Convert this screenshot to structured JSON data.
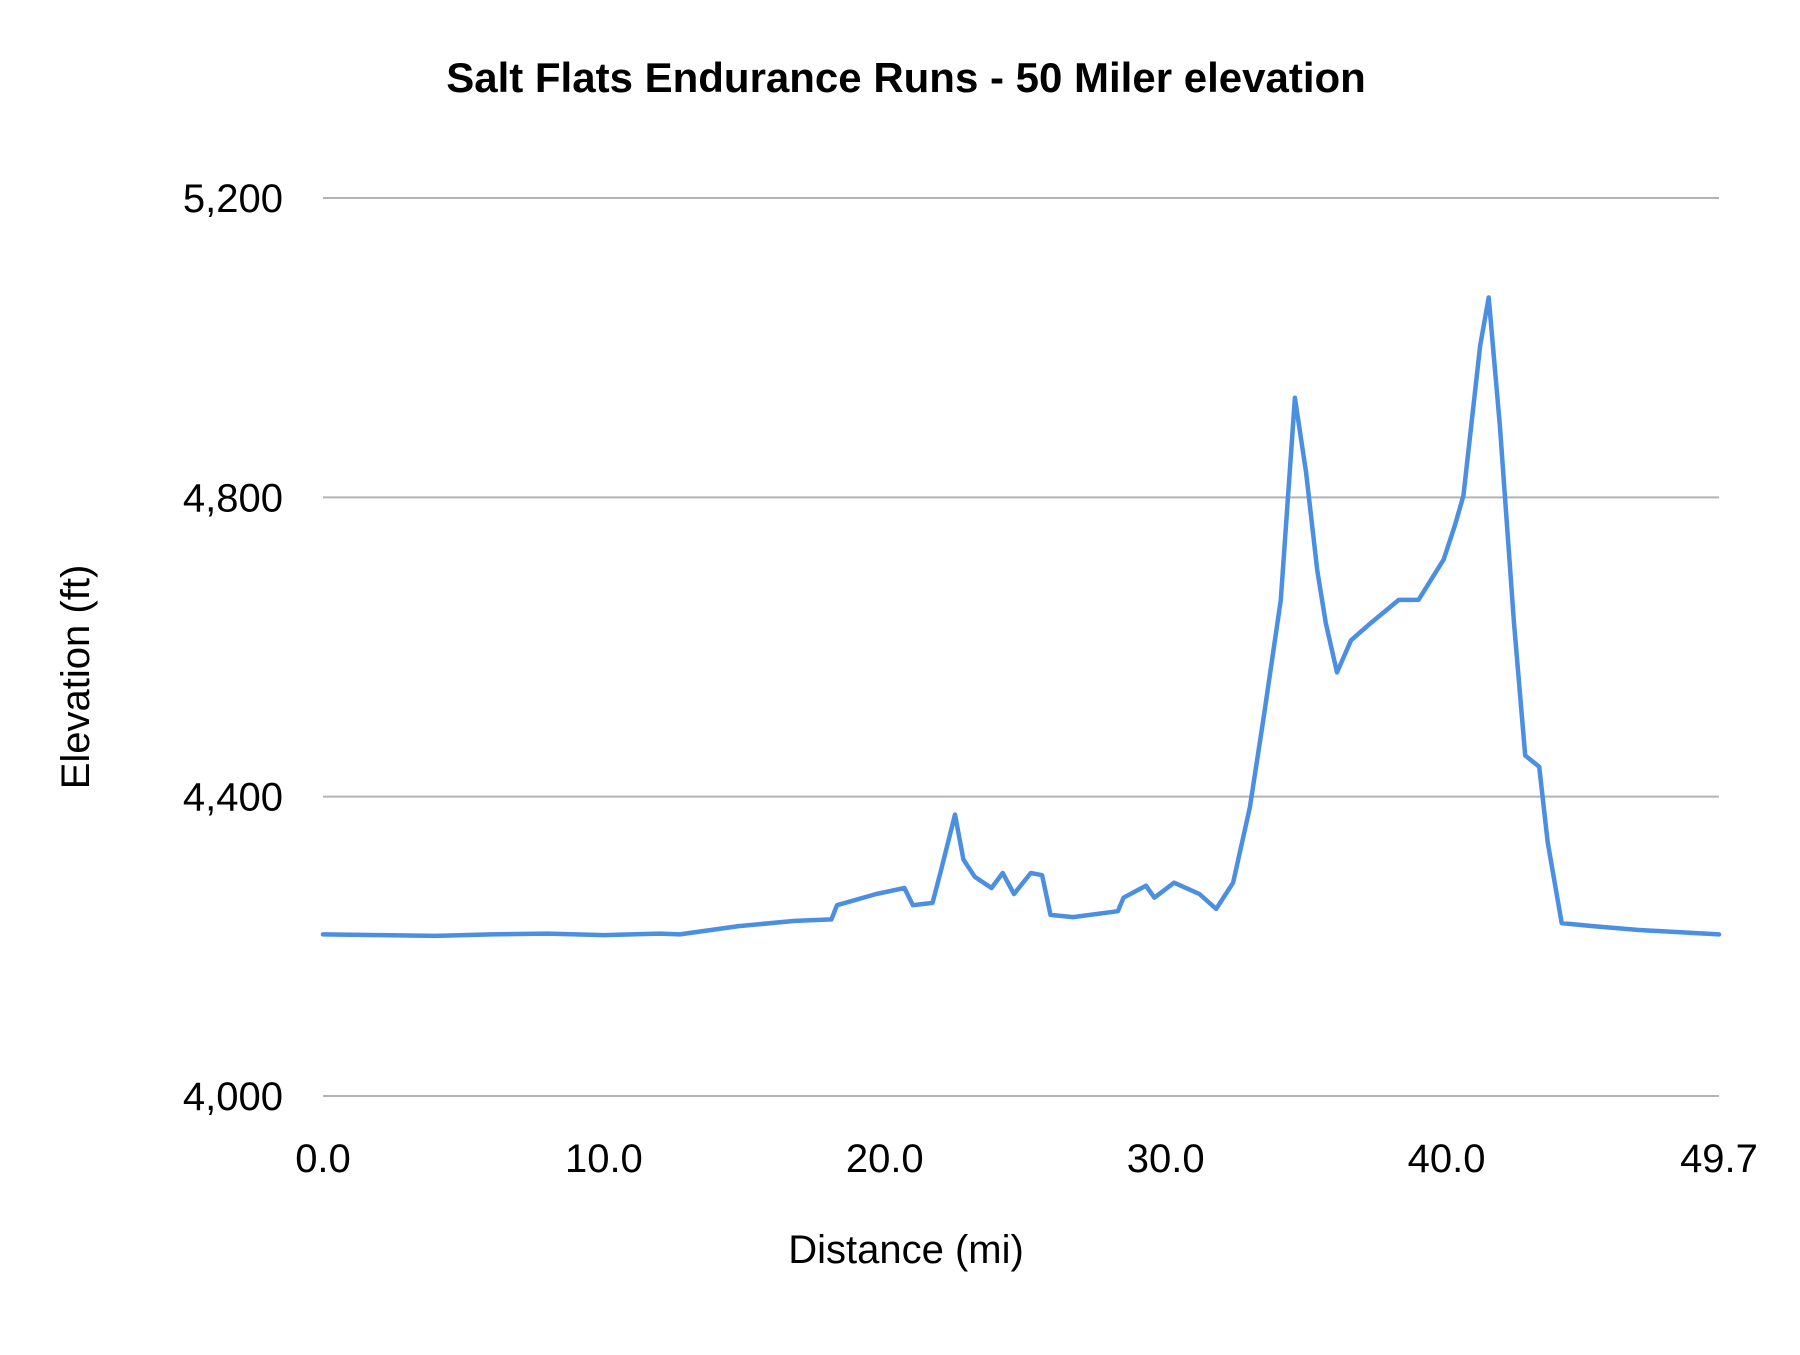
{
  "chart_data": {
    "type": "line",
    "title": "Salt Flats Endurance Runs - 50 Miler elevation",
    "xlabel": "Distance (mi)",
    "ylabel": "Elevation (ft)",
    "xlim": [
      0,
      49.7
    ],
    "ylim": [
      4000,
      5200
    ],
    "x_ticks": [
      "0.0",
      "10.0",
      "20.0",
      "30.0",
      "40.0",
      "49.7"
    ],
    "x_tick_values": [
      0,
      10,
      20,
      30,
      40,
      49.7
    ],
    "y_ticks": [
      "4,000",
      "4,400",
      "4,800",
      "5,200"
    ],
    "y_tick_values": [
      4000,
      4400,
      4800,
      5200
    ],
    "grid": "horizontal",
    "line_color": "#4a8fe2",
    "series": [
      {
        "x": [
          0,
          2,
          4,
          6,
          8,
          10,
          12,
          12.7,
          14.8,
          16.8,
          18.1,
          18.3,
          19.7,
          20.7,
          21.0,
          21.7,
          22.0,
          22.5,
          22.8,
          23.2,
          23.8,
          24.2,
          24.6,
          25.2,
          25.6,
          25.9,
          26.7,
          28.3,
          28.5,
          29.3,
          29.6,
          30.3,
          31.2,
          31.8,
          32.4,
          33.0,
          33.5,
          34.1,
          34.6,
          35.0,
          35.4,
          35.7,
          36.1,
          36.6,
          37.3,
          38.3,
          39.0,
          39.9,
          40.3,
          40.6,
          41.2,
          41.5,
          41.9,
          42.4,
          42.8,
          43.3,
          43.6,
          44.1,
          45.2,
          46.8,
          49.7
        ],
        "y": [
          4216,
          4215,
          4214,
          4216,
          4217,
          4215,
          4217,
          4216,
          4227,
          4234,
          4236,
          4255,
          4270,
          4278,
          4255,
          4258,
          4301,
          4376,
          4316,
          4293,
          4278,
          4298,
          4270,
          4298,
          4295,
          4242,
          4239,
          4247,
          4265,
          4281,
          4265,
          4285,
          4270,
          4250,
          4285,
          4386,
          4509,
          4663,
          4933,
          4833,
          4702,
          4632,
          4566,
          4609,
          4632,
          4663,
          4663,
          4717,
          4763,
          4802,
          5003,
          5067,
          4895,
          4632,
          4455,
          4440,
          4339,
          4231,
          4227,
          4222,
          4216
        ]
      }
    ]
  }
}
